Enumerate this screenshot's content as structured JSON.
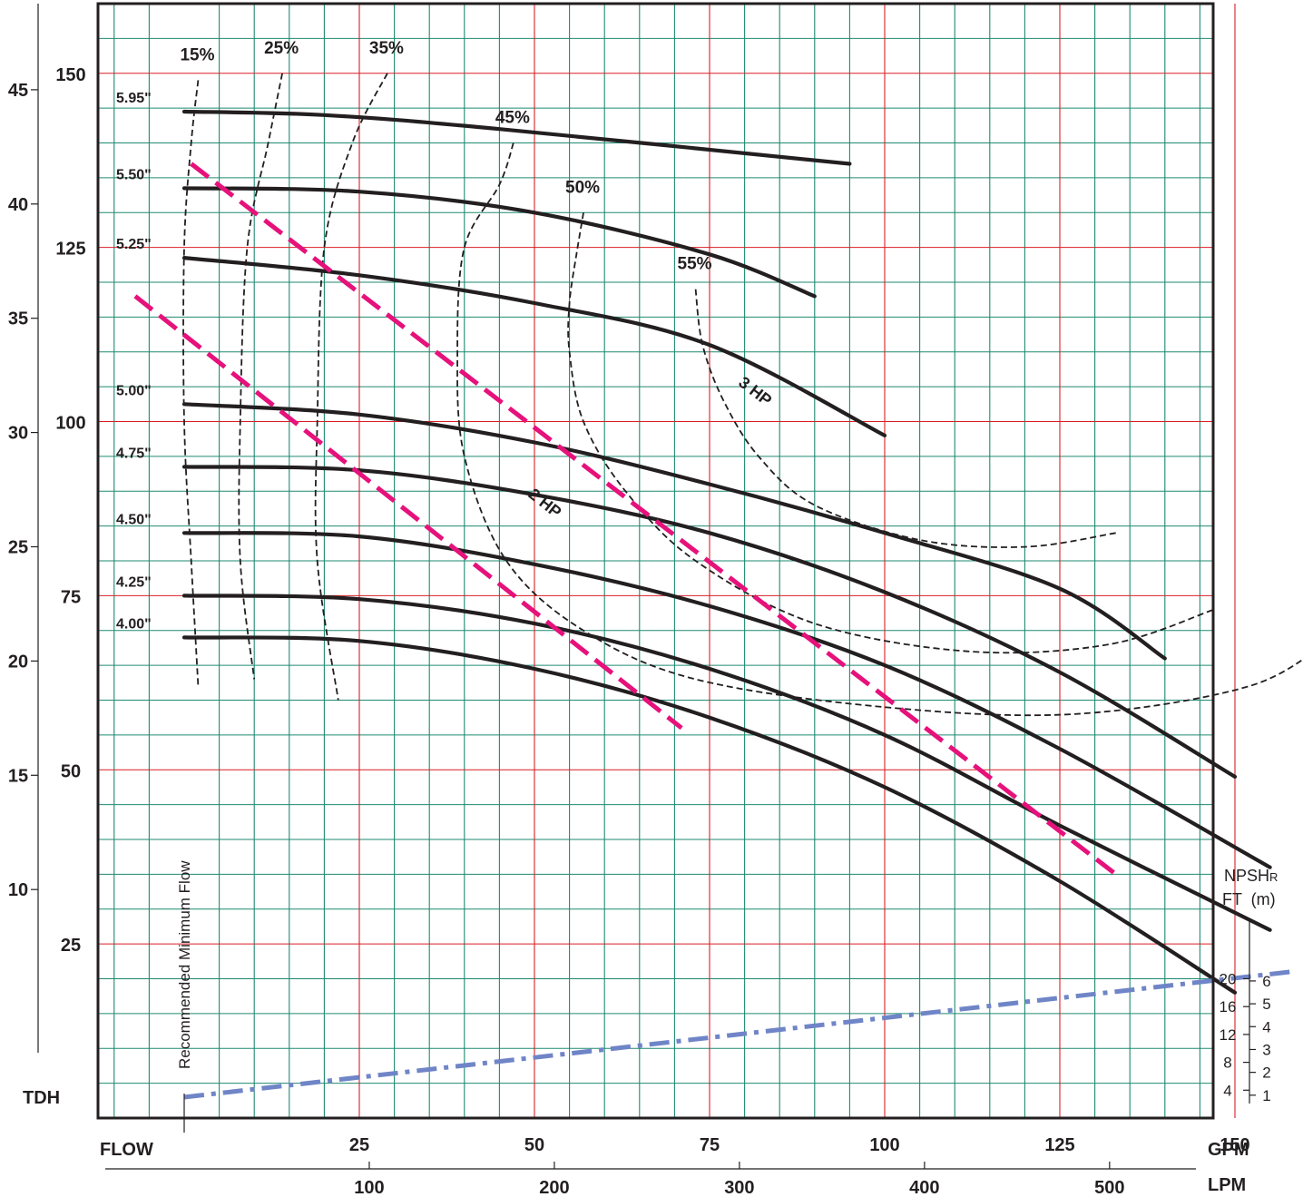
{
  "chart_data": {
    "type": "line",
    "title": "",
    "axes": {
      "gpm_label": "GPM",
      "lpm_label": "LPM",
      "flow_label": "FLOW",
      "tdh_label": "TDH",
      "gpm_ticks": [
        25,
        50,
        75,
        100,
        125,
        150
      ],
      "lpm_ticks": [
        100,
        200,
        300,
        400,
        500
      ],
      "tdh_ft_ticks": [
        25,
        50,
        75,
        100,
        125,
        150
      ],
      "tdh_m_ticks": [
        10,
        15,
        20,
        25,
        30,
        35,
        40,
        45
      ],
      "xlim_gpm": [
        -12,
        157
      ],
      "ylim_ft": [
        0,
        162
      ],
      "grid": true
    },
    "npsh": {
      "title": "NPSH",
      "subscript": "R",
      "units": "FT  (m)",
      "ft_ticks": [
        4,
        8,
        12,
        16,
        20
      ],
      "m_ticks": [
        1,
        2,
        3,
        4,
        5,
        6
      ],
      "x_gpm": [
        0,
        158
      ],
      "ft_values": [
        3,
        21
      ]
    },
    "min_flow_label": "Recommended Minimum Flow",
    "min_flow_gpm": 0,
    "series": [
      {
        "name": "5.95\"",
        "x": [
          0,
          20,
          45,
          95
        ],
        "y": [
          144.5,
          144,
          142,
          137
        ]
      },
      {
        "name": "5.50\"",
        "x": [
          0,
          25,
          50,
          75,
          90
        ],
        "y": [
          133.5,
          133,
          130,
          124,
          118
        ]
      },
      {
        "name": "5.25\"",
        "x": [
          0,
          25,
          50,
          75,
          100
        ],
        "y": [
          123.5,
          121,
          117,
          111,
          98
        ]
      },
      {
        "name": "5.00\"",
        "x": [
          0,
          25,
          50,
          75,
          100,
          125,
          140
        ],
        "y": [
          102.5,
          101,
          97,
          91,
          84,
          76,
          66
        ]
      },
      {
        "name": "4.75\"",
        "x": [
          0,
          25,
          50,
          75,
          100,
          125,
          150
        ],
        "y": [
          93.5,
          93,
          89.5,
          84,
          75.5,
          64,
          49
        ]
      },
      {
        "name": "4.50\"",
        "x": [
          0,
          25,
          50,
          75,
          100,
          125,
          155
        ],
        "y": [
          84,
          83.5,
          79.5,
          73.5,
          65,
          53,
          36
        ]
      },
      {
        "name": "4.25\"",
        "x": [
          0,
          25,
          50,
          75,
          100,
          125,
          155
        ],
        "y": [
          75,
          74.5,
          71,
          64.5,
          55,
          42,
          27
        ]
      },
      {
        "name": "4.00\"",
        "x": [
          0,
          25,
          50,
          75,
          100,
          125,
          150
        ],
        "y": [
          69,
          68.5,
          64.5,
          57.5,
          47.5,
          34,
          18
        ]
      }
    ],
    "efficiency": [
      {
        "name": "15%",
        "x": [
          2,
          1,
          0,
          0,
          1,
          2
        ],
        "y": [
          149,
          140,
          125,
          100,
          80,
          62
        ]
      },
      {
        "name": "25%",
        "x": [
          14,
          12,
          9,
          8,
          8,
          10
        ],
        "y": [
          150,
          140,
          125,
          100,
          80,
          63
        ]
      },
      {
        "name": "35%",
        "x": [
          29,
          24,
          20,
          19,
          19,
          22
        ],
        "y": [
          150,
          140,
          125,
          100,
          80,
          60
        ]
      },
      {
        "name": "45%",
        "x": [
          47,
          45,
          40,
          39,
          40,
          46,
          57,
          73,
          100,
          127,
          152,
          164
        ],
        "y": [
          140,
          134,
          125,
          110,
          95,
          80,
          70,
          63,
          59,
          58,
          62,
          69
        ]
      },
      {
        "name": "50%",
        "x": [
          57,
          56,
          55,
          55,
          57,
          63,
          73,
          90,
          112,
          132,
          147
        ],
        "y": [
          130,
          124,
          117,
          110,
          100,
          90,
          80,
          71,
          67,
          68,
          73
        ]
      },
      {
        "name": "55%",
        "x": [
          73,
          74,
          77,
          82,
          90,
          105,
          120,
          133
        ],
        "y": [
          119,
          111,
          103,
          95,
          88,
          83,
          82,
          84
        ]
      }
    ],
    "power": [
      {
        "name": "3 HP",
        "x": [
          1,
          65,
          133
        ],
        "y": [
          137,
          104,
          35
        ]
      },
      {
        "name": "2 HP",
        "x": [
          -7,
          35,
          71
        ],
        "y": [
          118,
          88,
          56
        ]
      }
    ],
    "colors": {
      "frame": "#231f20",
      "grid_green": "#1f8a70",
      "grid_red": "#d91f26",
      "power": "#e6117b",
      "npsh": "#6f85c7",
      "curves": "#231f20"
    }
  }
}
